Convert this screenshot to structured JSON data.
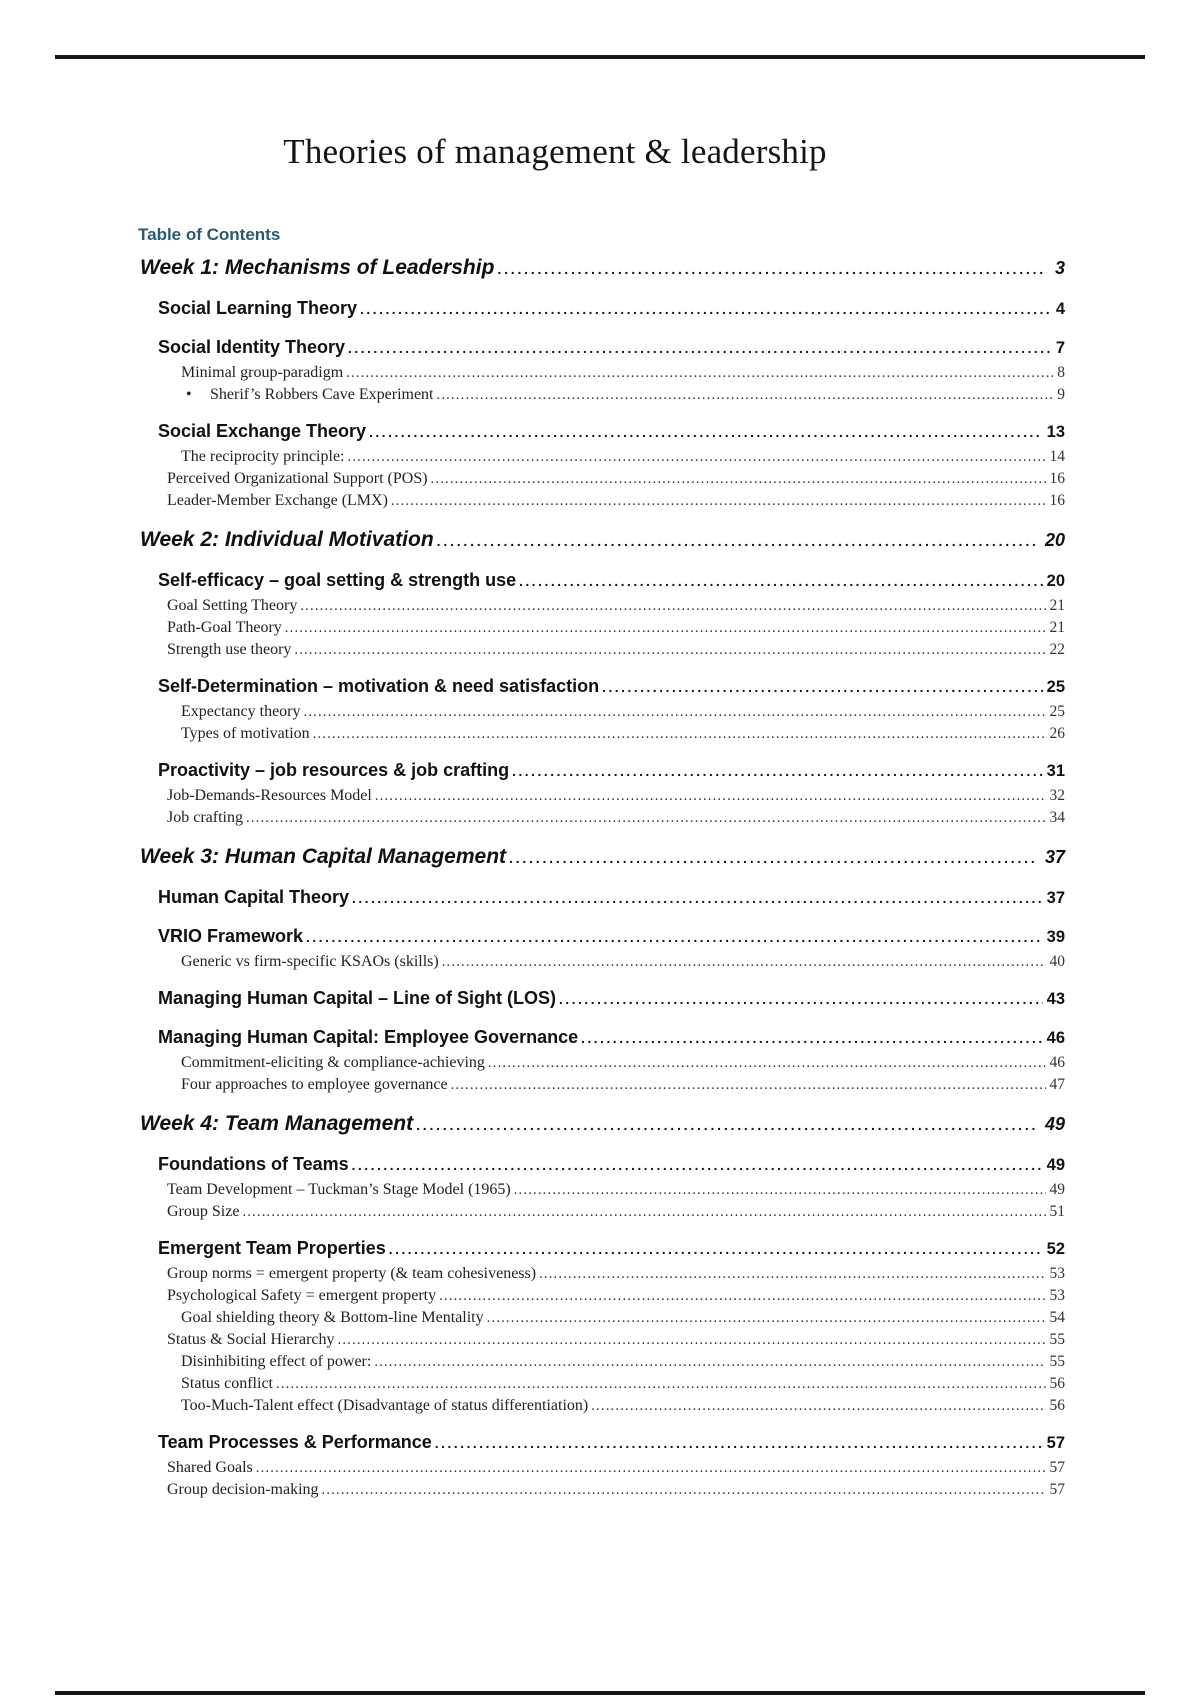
{
  "page": {
    "title": "Theories of management & leadership",
    "toc_heading": "Table of Contents"
  },
  "colors": {
    "toc_heading_accent": "#2a5a6d",
    "body_text": "#1a1a1a",
    "rule": "#151515"
  },
  "toc": {
    "bullet_glyph": "•",
    "entries": [
      {
        "level": 1,
        "label": "Week 1: Mechanisms of Leadership",
        "page": "3"
      },
      {
        "level": 2,
        "label": "Social Learning Theory",
        "page": "4"
      },
      {
        "level": 2,
        "label": "Social Identity Theory",
        "page": "7"
      },
      {
        "level": 4,
        "label": "Minimal group-paradigm",
        "page": "8"
      },
      {
        "level": 5,
        "label": "Sherif’s Robbers Cave Experiment",
        "page": "9"
      },
      {
        "level": 2,
        "label": "Social Exchange Theory",
        "page": "13"
      },
      {
        "level": 4,
        "label": "The reciprocity principle:",
        "page": "14"
      },
      {
        "level": 3,
        "label": "Perceived Organizational Support (POS)",
        "page": "16"
      },
      {
        "level": 3,
        "label": "Leader-Member Exchange (LMX)",
        "page": "16"
      },
      {
        "level": 1,
        "label": "Week 2: Individual Motivation",
        "page": "20"
      },
      {
        "level": 2,
        "label": "Self-efficacy – goal setting & strength use",
        "page": "20"
      },
      {
        "level": 3,
        "label": "Goal Setting Theory",
        "page": "21"
      },
      {
        "level": 3,
        "label": "Path-Goal Theory",
        "page": "21"
      },
      {
        "level": 3,
        "label": "Strength use theory",
        "page": "22"
      },
      {
        "level": 2,
        "label": "Self-Determination – motivation & need satisfaction",
        "page": "25"
      },
      {
        "level": 4,
        "label": "Expectancy theory",
        "page": "25"
      },
      {
        "level": 4,
        "label": "Types of motivation",
        "page": "26"
      },
      {
        "level": 2,
        "label": "Proactivity – job resources & job crafting",
        "page": "31"
      },
      {
        "level": 3,
        "label": "Job-Demands-Resources Model",
        "page": "32"
      },
      {
        "level": 3,
        "label": "Job crafting",
        "page": "34"
      },
      {
        "level": 1,
        "label": "Week 3: Human Capital Management",
        "page": "37"
      },
      {
        "level": 2,
        "label": "Human Capital Theory",
        "page": "37"
      },
      {
        "level": 2,
        "label": "VRIO Framework",
        "page": "39"
      },
      {
        "level": 4,
        "label": "Generic vs firm-specific KSAOs (skills)",
        "page": "40"
      },
      {
        "level": 2,
        "label": "Managing Human Capital – Line of Sight (LOS)",
        "page": "43"
      },
      {
        "level": 2,
        "label": "Managing Human Capital: Employee Governance",
        "page": "46"
      },
      {
        "level": 4,
        "label": "Commitment-eliciting & compliance-achieving",
        "page": "46"
      },
      {
        "level": 4,
        "label": "Four approaches to employee governance",
        "page": "47"
      },
      {
        "level": 1,
        "label": "Week 4: Team Management",
        "page": "49"
      },
      {
        "level": 2,
        "label": "Foundations of Teams",
        "page": "49"
      },
      {
        "level": 3,
        "label": "Team Development – Tuckman’s Stage Model (1965)",
        "page": "49"
      },
      {
        "level": 3,
        "label": "Group Size",
        "page": "51"
      },
      {
        "level": 2,
        "label": "Emergent Team Properties",
        "page": "52"
      },
      {
        "level": 3,
        "label": "Group norms = emergent property (& team cohesiveness)",
        "page": "53"
      },
      {
        "level": 3,
        "label": "Psychological Safety = emergent property",
        "page": "53"
      },
      {
        "level": 4,
        "label": "Goal shielding theory & Bottom-line Mentality",
        "page": "54"
      },
      {
        "level": 3,
        "label": "Status & Social Hierarchy",
        "page": "55"
      },
      {
        "level": 4,
        "label": "Disinhibiting effect of power:",
        "page": "55"
      },
      {
        "level": 4,
        "label": "Status conflict",
        "page": "56"
      },
      {
        "level": 4,
        "label": "Too-Much-Talent effect (Disadvantage of status differentiation)",
        "page": "56"
      },
      {
        "level": 2,
        "label": "Team Processes & Performance",
        "page": "57"
      },
      {
        "level": 3,
        "label": "Shared Goals",
        "page": "57"
      },
      {
        "level": 3,
        "label": "Group decision-making",
        "page": "57"
      }
    ]
  }
}
